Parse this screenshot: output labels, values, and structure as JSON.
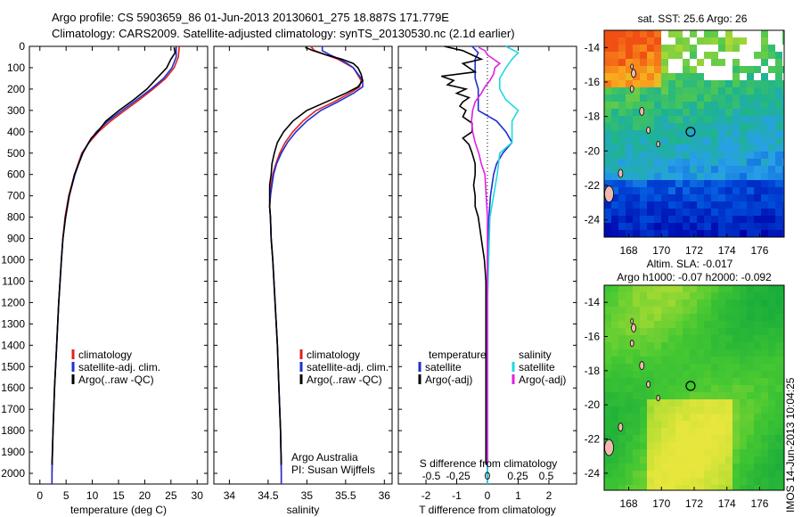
{
  "header": {
    "line1": "Argo profile: CS 5903659_86 01-Jun-2013 20130601_275 18.887S 171.779E",
    "line2": "Climatology: CARS2009. Satellite-adjusted climatology: synTS_20130530.nc (2.1d earlier)"
  },
  "colors": {
    "climatology": "#e02020",
    "satellite": "#1f2fd0",
    "argo": "#000000",
    "argo_adj_salinity": "#e020e0",
    "satellite_salinity": "#20d8e0"
  },
  "depth_axis": {
    "ylim": [
      0,
      2050
    ],
    "ticks": [
      0,
      100,
      200,
      300,
      400,
      500,
      600,
      700,
      800,
      900,
      1000,
      1100,
      1200,
      1300,
      1400,
      1500,
      1600,
      1700,
      1800,
      1900,
      2000
    ]
  },
  "chart_data": [
    {
      "type": "line",
      "id": "temperature",
      "xlabel": "temperature (deg C)",
      "xlim": [
        -2,
        32
      ],
      "xticks": [
        0,
        5,
        10,
        15,
        20,
        25,
        30
      ],
      "legend": [
        "climatology",
        "satellite-adj. clim.",
        "Argo(..raw -QC)"
      ],
      "series": [
        {
          "name": "climatology",
          "color": "#e02020",
          "depth": [
            0,
            50,
            100,
            150,
            200,
            250,
            300,
            350,
            400,
            450,
            500,
            600,
            700,
            800,
            900,
            1000,
            1200,
            1400,
            1600,
            1800,
            2000,
            2050
          ],
          "values": [
            26.6,
            26.4,
            25.6,
            24.0,
            21.6,
            19.0,
            16.2,
            13.5,
            11.2,
            9.4,
            8.0,
            6.6,
            5.5,
            4.8,
            4.4,
            4.1,
            3.6,
            3.2,
            2.8,
            2.5,
            2.3,
            2.3
          ]
        },
        {
          "name": "satellite-adj. clim.",
          "color": "#1f2fd0",
          "depth": [
            0,
            50,
            100,
            150,
            200,
            250,
            300,
            350,
            400,
            450,
            500,
            600,
            700,
            800,
            900,
            1000,
            1200,
            1400,
            1600,
            1800,
            2000,
            2050
          ],
          "values": [
            26.0,
            26.0,
            25.2,
            23.6,
            21.2,
            18.5,
            15.7,
            13.0,
            10.8,
            9.3,
            8.1,
            6.7,
            5.6,
            4.9,
            4.4,
            4.1,
            3.6,
            3.2,
            2.8,
            2.5,
            2.3,
            2.3
          ]
        },
        {
          "name": "Argo(..raw -QC)",
          "color": "#000000",
          "depth": [
            5,
            30,
            60,
            100,
            150,
            200,
            250,
            300,
            350,
            400,
            430,
            460,
            500,
            550,
            600,
            700,
            800,
            900,
            1000,
            1200,
            1400,
            1600,
            1800,
            1960
          ],
          "values": [
            25.6,
            25.8,
            25.0,
            24.2,
            22.3,
            20.4,
            17.9,
            15.1,
            12.6,
            11.0,
            9.8,
            9.1,
            8.2,
            7.4,
            6.6,
            5.6,
            4.9,
            4.4,
            4.1,
            3.6,
            3.2,
            2.8,
            2.5,
            2.3
          ]
        }
      ]
    },
    {
      "type": "line",
      "id": "salinity",
      "xlabel": "salinity",
      "xlim": [
        33.8,
        36.1
      ],
      "xticks": [
        34,
        34.5,
        35,
        35.5,
        36
      ],
      "legend": [
        "climatology",
        "satellite-adj. clim.",
        "Argo(..raw -QC)"
      ],
      "annotation": [
        "Argo Australia",
        "PI: Susan Wijffels"
      ],
      "series": [
        {
          "name": "climatology",
          "color": "#e02020",
          "depth": [
            0,
            20,
            40,
            60,
            80,
            100,
            130,
            160,
            190,
            220,
            260,
            300,
            350,
            400,
            450,
            500,
            550,
            600,
            650,
            700,
            750,
            800,
            900,
            1000,
            1200,
            1400,
            1600,
            1800,
            2000,
            2050
          ],
          "values": [
            35.05,
            35.1,
            35.25,
            35.4,
            35.5,
            35.6,
            35.65,
            35.7,
            35.68,
            35.55,
            35.35,
            35.12,
            34.95,
            34.82,
            34.72,
            34.65,
            34.6,
            34.56,
            34.54,
            34.53,
            34.52,
            34.53,
            34.54,
            34.56,
            34.59,
            34.62,
            34.64,
            34.66,
            34.67,
            34.67
          ]
        },
        {
          "name": "satellite-adj. clim.",
          "color": "#1f2fd0",
          "depth": [
            0,
            20,
            40,
            60,
            80,
            100,
            130,
            160,
            190,
            220,
            260,
            300,
            350,
            400,
            450,
            500,
            550,
            600,
            650,
            700,
            750,
            800,
            900,
            1000,
            1200,
            1400,
            1600,
            1800,
            2000,
            2050
          ],
          "values": [
            35.2,
            35.2,
            35.3,
            35.42,
            35.52,
            35.6,
            35.66,
            35.72,
            35.72,
            35.6,
            35.4,
            35.18,
            35.0,
            34.86,
            34.75,
            34.67,
            34.61,
            34.57,
            34.55,
            34.53,
            34.52,
            34.53,
            34.54,
            34.56,
            34.59,
            34.62,
            34.64,
            34.66,
            34.67,
            34.67
          ]
        },
        {
          "name": "Argo(..raw -QC)",
          "color": "#000000",
          "depth": [
            5,
            20,
            40,
            60,
            80,
            100,
            130,
            160,
            190,
            220,
            260,
            300,
            350,
            400,
            450,
            500,
            550,
            600,
            650,
            700,
            750,
            800,
            900,
            1000,
            1200,
            1400,
            1600,
            1800,
            1960
          ],
          "values": [
            34.98,
            35.08,
            35.25,
            35.45,
            35.6,
            35.66,
            35.7,
            35.72,
            35.66,
            35.5,
            35.25,
            35.0,
            34.82,
            34.7,
            34.62,
            34.58,
            34.55,
            34.54,
            34.52,
            34.52,
            34.52,
            34.53,
            34.54,
            34.56,
            34.59,
            34.62,
            34.64,
            34.66,
            34.67
          ]
        }
      ]
    },
    {
      "type": "line",
      "id": "difference",
      "xlabel": "T difference from climatology",
      "xlabel_top": "S difference from climatology",
      "xlim": [
        -2.9,
        2.9
      ],
      "xticks": [
        -2,
        -1,
        0,
        1,
        2
      ],
      "s_ticks": [
        "-0.5",
        "-0.25",
        "0",
        "0.25",
        "0.5"
      ],
      "legend_temperature": [
        "temperature",
        "satellite",
        "Argo(-adj)"
      ],
      "legend_salinity": [
        "salinity",
        "satellite",
        "Argo(-adj)"
      ],
      "series": [
        {
          "name": "T satellite",
          "color": "#1f2fd0",
          "depth": [
            0,
            30,
            60,
            100,
            150,
            200,
            250,
            300,
            350,
            400,
            450,
            500,
            550,
            600,
            700,
            800,
            900,
            1000,
            1200,
            1500,
            1800,
            2000,
            2050
          ],
          "values": [
            -0.5,
            -0.3,
            -0.4,
            -0.4,
            -0.4,
            -0.3,
            -0.3,
            -0.3,
            0.3,
            0.6,
            0.8,
            0.5,
            0.3,
            0.2,
            0.1,
            0.05,
            0.02,
            0,
            0,
            0,
            0,
            0,
            0
          ]
        },
        {
          "name": "T Argo(-adj)",
          "color": "#000000",
          "depth": [
            0,
            20,
            40,
            60,
            80,
            100,
            120,
            140,
            160,
            180,
            200,
            220,
            240,
            260,
            280,
            300,
            330,
            360,
            400,
            430,
            460,
            500,
            550,
            600,
            650,
            700,
            750,
            800,
            850,
            900,
            950,
            1000,
            1100,
            1200,
            1400,
            1600,
            1800,
            1960
          ],
          "values": [
            -1.4,
            -0.8,
            -0.5,
            -0.2,
            -0.8,
            -0.6,
            -0.4,
            -1.5,
            -1.1,
            -1.3,
            -0.7,
            -1.0,
            -0.6,
            -0.8,
            -0.9,
            -0.7,
            -0.8,
            -0.5,
            -0.5,
            -0.8,
            -0.6,
            -0.5,
            -0.4,
            -0.4,
            -0.45,
            -0.4,
            -0.4,
            -0.3,
            -0.25,
            -0.2,
            -0.15,
            -0.1,
            -0.05,
            -0.05,
            -0.05,
            -0.05,
            -0.05,
            -0.05
          ]
        },
        {
          "name": "S satellite",
          "color": "#20d8e0",
          "depth": [
            0,
            30,
            60,
            100,
            150,
            200,
            250,
            300,
            350,
            400,
            450,
            500,
            600,
            700,
            800,
            1000,
            1200,
            1600,
            2000,
            2050
          ],
          "values": [
            0.15,
            0.25,
            0.2,
            0.15,
            0.1,
            0.1,
            0.15,
            0.25,
            0.2,
            0.2,
            0.2,
            0.1,
            0.08,
            0.05,
            0.02,
            0.01,
            0,
            0,
            0,
            0
          ]
        },
        {
          "name": "S Argo(-adj)",
          "color": "#e020e0",
          "depth": [
            5,
            20,
            40,
            60,
            80,
            100,
            130,
            160,
            190,
            220,
            260,
            300,
            350,
            400,
            450,
            500,
            550,
            600,
            700,
            800,
            900,
            1000,
            1200,
            1500,
            1800,
            1960
          ],
          "values": [
            -0.07,
            -0.02,
            0,
            0.05,
            0.1,
            0.06,
            0.05,
            0.02,
            -0.02,
            -0.05,
            -0.1,
            -0.12,
            -0.13,
            -0.12,
            -0.1,
            -0.07,
            -0.05,
            -0.02,
            -0.01,
            0,
            0,
            0,
            0,
            0,
            0,
            0
          ]
        }
      ]
    },
    {
      "type": "heatmap",
      "id": "sst_map",
      "title": "sat. SST: 25.6 Argo: 26",
      "xticks": [
        "168",
        "170",
        "172",
        "174",
        "176"
      ],
      "yticks": [
        "-14",
        "-16",
        "-18",
        "-20",
        "-22",
        "-24"
      ],
      "xlim": [
        166.5,
        177.5
      ],
      "ylim": [
        -25,
        -13
      ],
      "marker": {
        "lon": 171.78,
        "lat": -18.89
      }
    },
    {
      "type": "heatmap",
      "id": "sla_map",
      "title_line1": "Altim. SLA: -0.017",
      "title_line2": "Argo h1000: -0.07 h2000: -0.092",
      "xticks": [
        "168",
        "170",
        "172",
        "174",
        "176"
      ],
      "yticks": [
        "-14",
        "-16",
        "-18",
        "-20",
        "-22",
        "-24"
      ],
      "xlim": [
        166.5,
        177.5
      ],
      "ylim": [
        -25,
        -13
      ],
      "marker": {
        "lon": 171.78,
        "lat": -18.89
      }
    }
  ],
  "footer": {
    "stamp": "IMOS 14-Jun-2013 10:04:25"
  }
}
